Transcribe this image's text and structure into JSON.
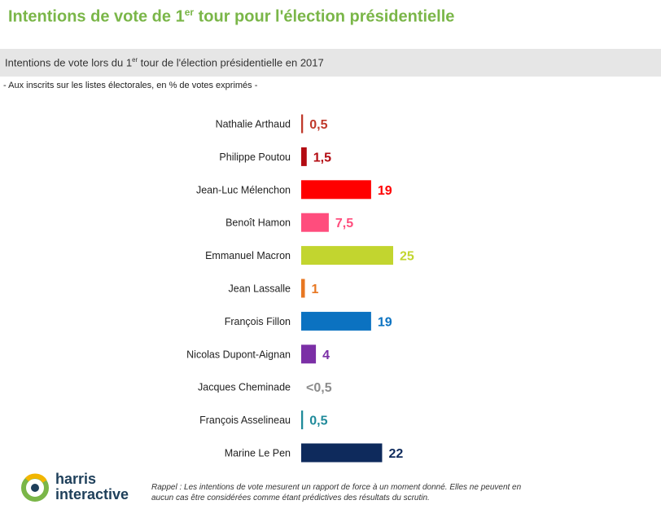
{
  "header": {
    "title_pre": "Intentions de vote de 1",
    "title_sup": "er",
    "title_post": " tour pour l'élection présidentielle"
  },
  "band": {
    "pre": "Intentions de vote lors du 1",
    "sup": "er",
    "post": " tour de l'élection présidentielle en 2017"
  },
  "subtitle": "- Aux inscrits sur les listes électorales, en % de votes exprimés -",
  "chart_data": {
    "type": "bar",
    "orientation": "horizontal",
    "title": "Intentions de vote lors du 1er tour de l'élection présidentielle en 2017",
    "xlabel": "",
    "ylabel": "",
    "xlim": [
      0,
      25
    ],
    "grid": false,
    "categories": [
      "Nathalie Arthaud",
      "Philippe Poutou",
      "Jean-Luc Mélenchon",
      "Benoît Hamon",
      "Emmanuel Macron",
      "Jean Lassalle",
      "François Fillon",
      "Nicolas Dupont-Aignan",
      "Jacques Cheminade",
      "François Asselineau",
      "Marine Le Pen"
    ],
    "values": [
      0.5,
      1.5,
      19,
      7.5,
      25,
      1,
      19,
      4,
      0.2,
      0.5,
      22
    ],
    "value_labels": [
      "0,5",
      "1,5",
      "19",
      "7,5",
      "25",
      "1",
      "19",
      "4",
      "<0,5",
      "0,5",
      "22"
    ],
    "colors": [
      "#c0392b",
      "#b30b12",
      "#ff0000",
      "#ff4d7d",
      "#c2d52f",
      "#e87722",
      "#0b72c1",
      "#7b2fa6",
      "#8c8c8c",
      "#1f8a9a",
      "#0e2a5c"
    ]
  },
  "footer": {
    "logo_word_1": "harris",
    "logo_word_2": "interactive",
    "note": "Rappel : Les intentions de vote mesurent un rapport de force à un moment donné. Elles ne peuvent en aucun cas être considérées comme étant prédictives des résultats du scrutin."
  }
}
